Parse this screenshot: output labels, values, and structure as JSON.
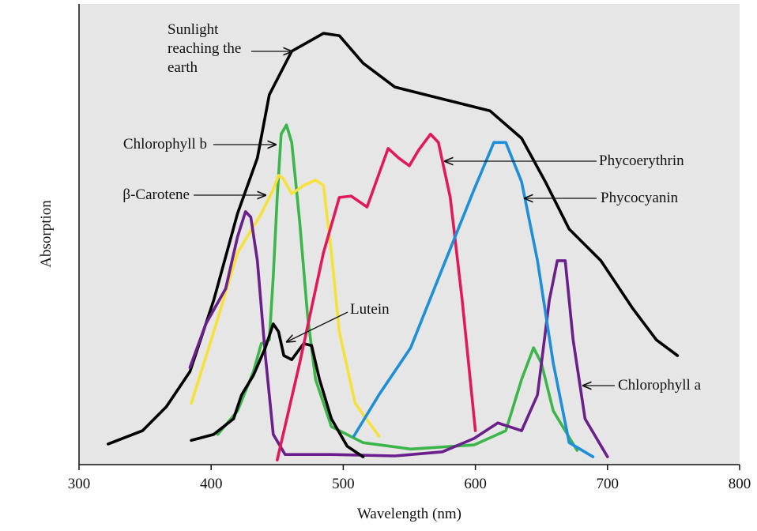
{
  "chart_data": {
    "type": "line",
    "x_label": "Wavelength (nm)",
    "y_label": "Absorption",
    "xlim": [
      300,
      800
    ],
    "xticks": [
      300,
      400,
      500,
      600,
      700,
      800
    ],
    "ylim": [
      0,
      100
    ],
    "series": [
      {
        "name": "Sunlight reaching the earth",
        "color": "#000000",
        "x": [
          322,
          348,
          366,
          384,
          402,
          420,
          435,
          444,
          461,
          485,
          497,
          515,
          539,
          575,
          611,
          635,
          653,
          671,
          695,
          719,
          737,
          753
        ],
        "values": [
          4.5,
          7.4,
          12.6,
          20.3,
          35.9,
          54.8,
          66.9,
          80.7,
          90.2,
          94.1,
          93.6,
          87.6,
          82.4,
          79.8,
          77.2,
          71.2,
          61.7,
          51.4,
          44.5,
          34.1,
          27.2,
          23.8
        ]
      },
      {
        "name": "Chlorophyll b",
        "color": "#3cb54a",
        "x": [
          405,
          420,
          432,
          438,
          444,
          447,
          450,
          453,
          457,
          461,
          467,
          473,
          479,
          491,
          515,
          551,
          599,
          623,
          635,
          644,
          650,
          659,
          677
        ],
        "values": [
          6.6,
          11.7,
          20.3,
          26.4,
          27.2,
          41,
          58.3,
          72.1,
          74.1,
          70.3,
          53.1,
          32.4,
          18.6,
          8.3,
          4.8,
          3.4,
          4.3,
          7.4,
          18.6,
          25.5,
          22.1,
          11.7,
          3.1
        ]
      },
      {
        "name": "β-Carotene",
        "color": "#f5e13a",
        "x": [
          385,
          402,
          420,
          438,
          447,
          451,
          454,
          461,
          470,
          479,
          485,
          491,
          497,
          509,
          527
        ],
        "values": [
          13.4,
          29,
          46.2,
          54.8,
          60,
          63.1,
          62.6,
          59.1,
          60.9,
          62.1,
          60.9,
          46.2,
          29,
          13.4,
          6.2
        ]
      },
      {
        "name": "Chlorophyll a",
        "color": "#6a1f8a",
        "x": [
          384,
          396,
          411,
          420,
          426,
          430,
          435,
          441,
          447,
          456,
          491,
          539,
          575,
          599,
          617,
          635,
          647,
          656,
          662,
          668,
          674,
          683,
          700
        ],
        "values": [
          21.2,
          30.7,
          38.4,
          49.7,
          55.2,
          54,
          44.5,
          23.8,
          6.6,
          2.2,
          2.2,
          1.9,
          2.8,
          5.7,
          9.1,
          7.4,
          15.2,
          35.9,
          44.5,
          44.5,
          27.2,
          10,
          1.7
        ]
      },
      {
        "name": "Lutein",
        "color": "#000000",
        "x": [
          385,
          402,
          417,
          423,
          432,
          441,
          447,
          451,
          455,
          461,
          470,
          476,
          482,
          491,
          503,
          515
        ],
        "values": [
          5.3,
          6.6,
          10,
          15.2,
          19.5,
          25.5,
          30.7,
          29,
          23.8,
          22.9,
          26.4,
          26,
          18.6,
          10,
          4,
          1.7
        ]
      },
      {
        "name": "Phycoerythrin",
        "color": "#e0195a",
        "x": [
          450,
          467,
          485,
          497,
          506,
          518,
          527,
          534,
          542,
          550,
          557,
          566,
          572,
          581,
          590,
          600
        ],
        "values": [
          1,
          22.1,
          46.2,
          58.3,
          58.6,
          56.2,
          63.4,
          69,
          66.9,
          65.2,
          68.6,
          72.1,
          70.3,
          58.3,
          35.9,
          7.4
        ]
      },
      {
        "name": "Phycocyanin",
        "color": "#1e8fd6",
        "x": [
          508,
          527,
          551,
          575,
          599,
          614,
          623,
          635,
          647,
          659,
          671,
          689
        ],
        "values": [
          6.2,
          15.2,
          25.5,
          42.8,
          60,
          70.3,
          70.3,
          61.7,
          44.5,
          22.1,
          4.8,
          1.7
        ]
      }
    ]
  }
}
